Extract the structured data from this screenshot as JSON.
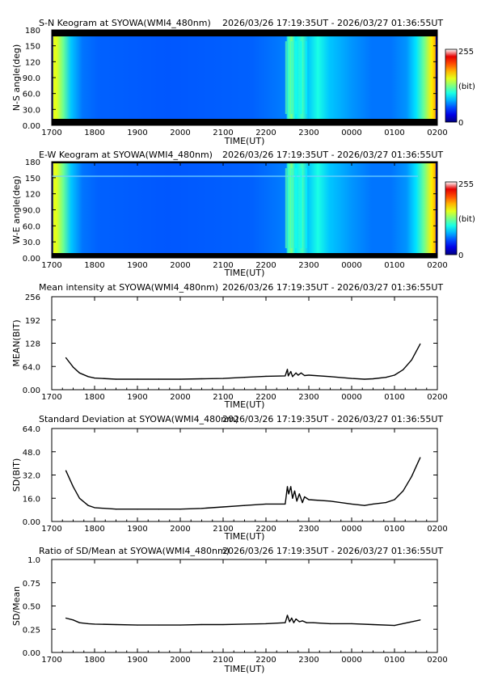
{
  "chart_data": [
    {
      "type": "heatmap",
      "title": "S-N Keogram at SYOWA(WMI4_480nm)",
      "time_range": "2026/03/26 17:19:35UT - 2026/03/27 01:36:55UT",
      "xlabel": "TIME(UT)",
      "ylabel": "N-S angle(deg)",
      "x_ticks": [
        "1700",
        "1800",
        "1900",
        "2000",
        "2100",
        "2200",
        "2300",
        "0000",
        "0100",
        "0200"
      ],
      "y_ticks": [
        "0.00",
        "30.0",
        "60.0",
        "90.0",
        "120",
        "150",
        "180"
      ],
      "ylim": [
        0,
        180
      ],
      "colorbar": {
        "max": "255",
        "unit": "(bit)",
        "min": "0"
      }
    },
    {
      "type": "heatmap",
      "title": "E-W Keogram at SYOWA(WMI4_480nm)",
      "time_range": "2026/03/26 17:19:35UT - 2026/03/27 01:36:55UT",
      "xlabel": "TIME(UT)",
      "ylabel": "W-E angle(deg)",
      "x_ticks": [
        "1700",
        "1800",
        "1900",
        "2000",
        "2100",
        "2200",
        "2300",
        "0000",
        "0100",
        "0200"
      ],
      "y_ticks": [
        "0.00",
        "30.0",
        "60.0",
        "90.0",
        "120",
        "150",
        "180"
      ],
      "ylim": [
        0,
        180
      ],
      "colorbar": {
        "max": "255",
        "unit": "(bit)",
        "min": "0"
      }
    },
    {
      "type": "line",
      "title": "Mean intensity at SYOWA(WMI4_480nm)",
      "time_range": "2026/03/26 17:19:35UT - 2026/03/27 01:36:55UT",
      "xlabel": "TIME(UT)",
      "ylabel": "MEAN(BIT)",
      "x_ticks": [
        "1700",
        "1800",
        "1900",
        "2000",
        "2100",
        "2200",
        "2300",
        "0000",
        "0100",
        "0200"
      ],
      "y_ticks": [
        "0.00",
        "64.0",
        "128",
        "192",
        "256"
      ],
      "xlim": [
        17.0,
        26.0
      ],
      "ylim": [
        0,
        256
      ],
      "x": [
        17.33,
        17.5,
        17.65,
        17.85,
        18.0,
        18.5,
        19.0,
        19.5,
        20.0,
        20.5,
        21.0,
        21.5,
        22.0,
        22.45,
        22.5,
        22.52,
        22.58,
        22.62,
        22.7,
        22.75,
        22.82,
        22.9,
        23.0,
        23.5,
        24.0,
        24.3,
        24.5,
        24.8,
        25.0,
        25.2,
        25.4,
        25.6
      ],
      "y": [
        88,
        62,
        46,
        36,
        32,
        29,
        29,
        29,
        29,
        30,
        31,
        34,
        37,
        38,
        56,
        38,
        50,
        36,
        46,
        40,
        46,
        39,
        40,
        36,
        31,
        29,
        30,
        34,
        40,
        55,
        82,
        126
      ]
    },
    {
      "type": "line",
      "title": "Standard Deviation at SYOWA(WMI4_480nm)",
      "time_range": "2026/03/26 17:19:35UT - 2026/03/27 01:36:55UT",
      "xlabel": "TIME(UT)",
      "ylabel": "SD(BIT)",
      "x_ticks": [
        "1700",
        "1800",
        "1900",
        "2000",
        "2100",
        "2200",
        "2300",
        "0000",
        "0100",
        "0200"
      ],
      "y_ticks": [
        "0.00",
        "16.0",
        "32.0",
        "48.0",
        "64.0"
      ],
      "xlim": [
        17.0,
        26.0
      ],
      "ylim": [
        0,
        64
      ],
      "x": [
        17.33,
        17.5,
        17.65,
        17.85,
        18.0,
        18.5,
        19.0,
        19.5,
        20.0,
        20.5,
        21.0,
        21.5,
        22.0,
        22.45,
        22.5,
        22.53,
        22.58,
        22.62,
        22.67,
        22.72,
        22.78,
        22.85,
        22.9,
        23.0,
        23.5,
        24.0,
        24.3,
        24.5,
        24.8,
        25.0,
        25.2,
        25.4,
        25.6
      ],
      "y": [
        35,
        24,
        16,
        11,
        9.5,
        8.5,
        8.5,
        8.5,
        8.5,
        9,
        10,
        11,
        12,
        12,
        24,
        19,
        24,
        16,
        21,
        14,
        19,
        13,
        17,
        15,
        14,
        12,
        11,
        12,
        13,
        15,
        21,
        31,
        44
      ]
    },
    {
      "type": "line",
      "title": "Ratio of SD/Mean at SYOWA(WMI4_480nm)",
      "time_range": "2026/03/26 17:19:35UT - 2026/03/27 01:36:55UT",
      "xlabel": "TIME(UT)",
      "ylabel": "SD/Mean",
      "x_ticks": [
        "1700",
        "1800",
        "1900",
        "2000",
        "2100",
        "2200",
        "2300",
        "0000",
        "0100",
        "0200"
      ],
      "y_ticks": [
        "0.00",
        "0.25",
        "0.50",
        "0.75",
        "1.0"
      ],
      "xlim": [
        17.0,
        26.0
      ],
      "ylim": [
        0,
        1.0
      ],
      "x": [
        17.33,
        17.5,
        17.65,
        17.85,
        18.0,
        18.5,
        19.0,
        19.5,
        20.0,
        20.5,
        21.0,
        21.5,
        22.0,
        22.45,
        22.5,
        22.55,
        22.6,
        22.65,
        22.7,
        22.78,
        22.85,
        22.95,
        23.1,
        23.5,
        24.0,
        24.5,
        25.0,
        25.3,
        25.6
      ],
      "y": [
        0.37,
        0.35,
        0.32,
        0.31,
        0.305,
        0.3,
        0.295,
        0.295,
        0.295,
        0.3,
        0.3,
        0.305,
        0.31,
        0.32,
        0.4,
        0.33,
        0.37,
        0.32,
        0.36,
        0.33,
        0.34,
        0.32,
        0.32,
        0.31,
        0.31,
        0.3,
        0.29,
        0.32,
        0.35
      ]
    }
  ]
}
